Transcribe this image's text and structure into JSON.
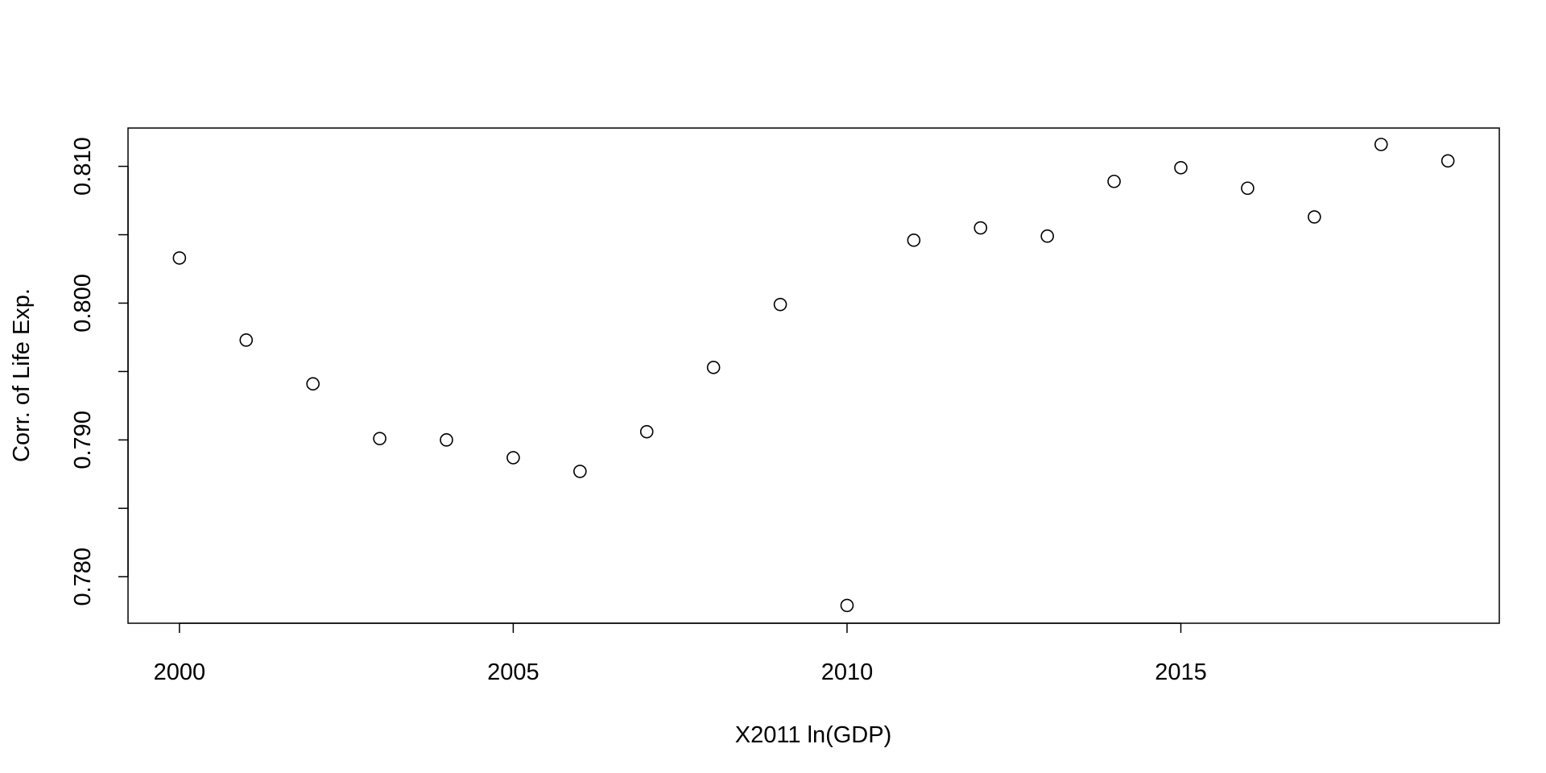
{
  "chart_data": {
    "type": "scatter",
    "title": "",
    "xlabel": "X2011 ln(GDP)",
    "ylabel": "Corr. of Life Exp.",
    "xlim": [
      1999.23,
      2019.77
    ],
    "ylim": [
      0.7766,
      0.8128
    ],
    "x_ticks": [
      2000,
      2005,
      2010,
      2015
    ],
    "y_ticks": [
      0.78,
      0.785,
      0.79,
      0.795,
      0.8,
      0.805,
      0.81
    ],
    "y_tick_labels": [
      "0.780",
      "",
      "0.790",
      "",
      "0.800",
      "",
      "0.810"
    ],
    "grid": false,
    "marker": "open-circle",
    "points": [
      {
        "x": 2000,
        "y": 0.8033
      },
      {
        "x": 2001,
        "y": 0.7973
      },
      {
        "x": 2002,
        "y": 0.7941
      },
      {
        "x": 2003,
        "y": 0.7901
      },
      {
        "x": 2004,
        "y": 0.79
      },
      {
        "x": 2005,
        "y": 0.7887
      },
      {
        "x": 2006,
        "y": 0.7877
      },
      {
        "x": 2007,
        "y": 0.7906
      },
      {
        "x": 2008,
        "y": 0.7953
      },
      {
        "x": 2009,
        "y": 0.7999
      },
      {
        "x": 2010,
        "y": 0.7779
      },
      {
        "x": 2011,
        "y": 0.8046
      },
      {
        "x": 2012,
        "y": 0.8055
      },
      {
        "x": 2013,
        "y": 0.8049
      },
      {
        "x": 2014,
        "y": 0.8089
      },
      {
        "x": 2015,
        "y": 0.8099
      },
      {
        "x": 2016,
        "y": 0.8084
      },
      {
        "x": 2017,
        "y": 0.8063
      },
      {
        "x": 2018,
        "y": 0.8116
      },
      {
        "x": 2019,
        "y": 0.8104
      }
    ]
  }
}
